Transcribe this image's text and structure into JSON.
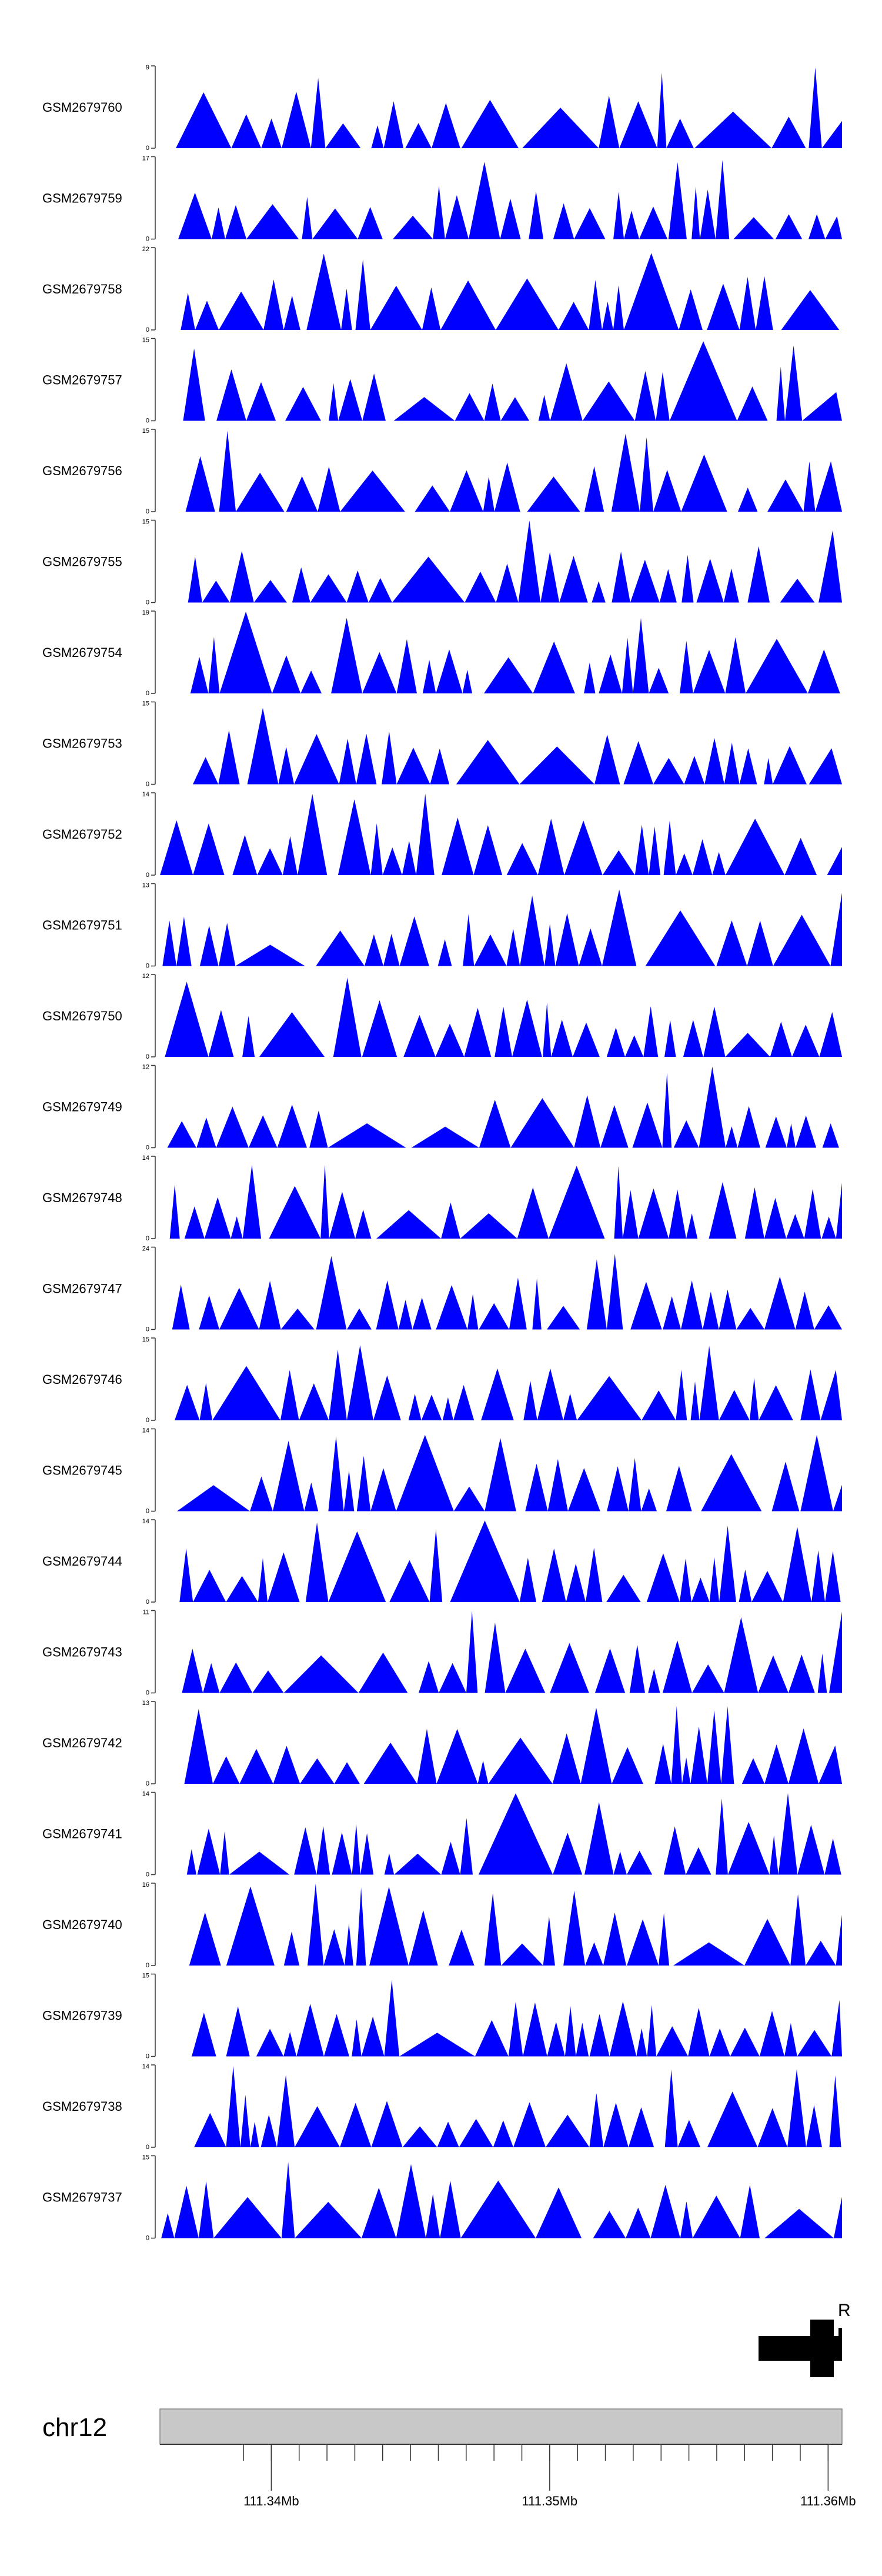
{
  "chart_data": {
    "type": "area",
    "chromosome": "chr12",
    "genome_range": [
      111336000,
      111360500
    ],
    "gene_label": "R",
    "x_ticks": [
      {
        "pos": 111340000,
        "label": "111.34Mb"
      },
      {
        "pos": 111350000,
        "label": "111.35Mb"
      },
      {
        "pos": 111360000,
        "label": "111.36Mb"
      }
    ],
    "tracks": [
      {
        "name": "GSM2679760",
        "ymax": "9",
        "ymin": "0"
      },
      {
        "name": "GSM2679759",
        "ymax": "17",
        "ymin": "0"
      },
      {
        "name": "GSM2679758",
        "ymax": "22",
        "ymin": "0"
      },
      {
        "name": "GSM2679757",
        "ymax": "15",
        "ymin": "0"
      },
      {
        "name": "GSM2679756",
        "ymax": "15",
        "ymin": "0"
      },
      {
        "name": "GSM2679755",
        "ymax": "15",
        "ymin": "0"
      },
      {
        "name": "GSM2679754",
        "ymax": "19",
        "ymin": "0"
      },
      {
        "name": "GSM2679753",
        "ymax": "15",
        "ymin": "0"
      },
      {
        "name": "GSM2679752",
        "ymax": "14",
        "ymin": "0"
      },
      {
        "name": "GSM2679751",
        "ymax": "13",
        "ymin": "0"
      },
      {
        "name": "GSM2679750",
        "ymax": "12",
        "ymin": "0"
      },
      {
        "name": "GSM2679749",
        "ymax": "12",
        "ymin": "0"
      },
      {
        "name": "GSM2679748",
        "ymax": "14",
        "ymin": "0"
      },
      {
        "name": "GSM2679747",
        "ymax": "24",
        "ymin": "0"
      },
      {
        "name": "GSM2679746",
        "ymax": "15",
        "ymin": "0"
      },
      {
        "name": "GSM2679745",
        "ymax": "14",
        "ymin": "0"
      },
      {
        "name": "GSM2679744",
        "ymax": "14",
        "ymin": "0"
      },
      {
        "name": "GSM2679743",
        "ymax": "11",
        "ymin": "0"
      },
      {
        "name": "GSM2679742",
        "ymax": "13",
        "ymin": "0"
      },
      {
        "name": "GSM2679741",
        "ymax": "14",
        "ymin": "0"
      },
      {
        "name": "GSM2679740",
        "ymax": "16",
        "ymin": "0"
      },
      {
        "name": "GSM2679739",
        "ymax": "15",
        "ymin": "0"
      },
      {
        "name": "GSM2679738",
        "ymax": "14",
        "ymin": "0"
      },
      {
        "name": "GSM2679737",
        "ymax": "15",
        "ymin": "0"
      }
    ],
    "colors": {
      "signal": "#0000ff",
      "axis": "#333333",
      "label": "#000000",
      "ideogram_fill": "#c8c8c8",
      "ideogram_border": "#888888",
      "gene": "#000000"
    }
  }
}
